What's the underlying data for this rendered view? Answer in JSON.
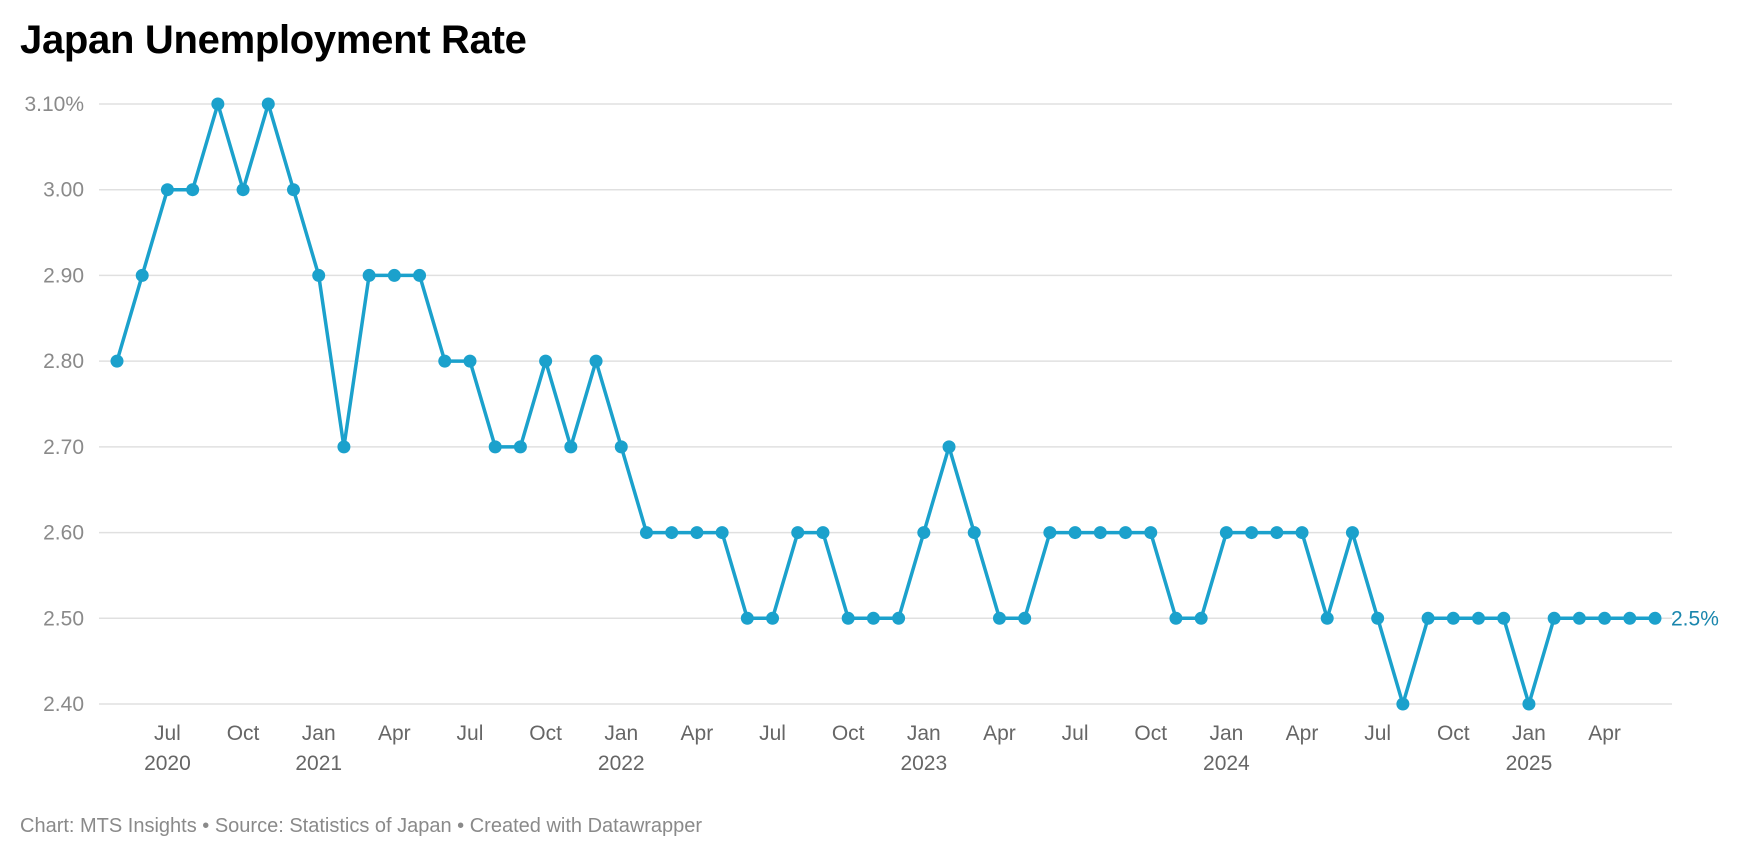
{
  "chart_data": {
    "type": "line",
    "title": "Japan Unemployment Rate",
    "xlabel": "",
    "ylabel": "",
    "ylim": [
      2.4,
      3.1
    ],
    "y_ticks": [
      "2.40",
      "2.50",
      "2.60",
      "2.70",
      "2.80",
      "2.90",
      "3.00",
      "3.10%"
    ],
    "grid": true,
    "x_start": "2020-05",
    "x_end": "2025-06",
    "x_ticks": [
      {
        "label": "Jul",
        "year": "2020",
        "date": "2020-07"
      },
      {
        "label": "Oct",
        "year": "",
        "date": "2020-10"
      },
      {
        "label": "Jan",
        "year": "2021",
        "date": "2021-01"
      },
      {
        "label": "Apr",
        "year": "",
        "date": "2021-04"
      },
      {
        "label": "Jul",
        "year": "",
        "date": "2021-07"
      },
      {
        "label": "Oct",
        "year": "",
        "date": "2021-10"
      },
      {
        "label": "Jan",
        "year": "2022",
        "date": "2022-01"
      },
      {
        "label": "Apr",
        "year": "",
        "date": "2022-04"
      },
      {
        "label": "Jul",
        "year": "",
        "date": "2022-07"
      },
      {
        "label": "Oct",
        "year": "",
        "date": "2022-10"
      },
      {
        "label": "Jan",
        "year": "2023",
        "date": "2023-01"
      },
      {
        "label": "Apr",
        "year": "",
        "date": "2023-04"
      },
      {
        "label": "Jul",
        "year": "",
        "date": "2023-07"
      },
      {
        "label": "Oct",
        "year": "",
        "date": "2023-10"
      },
      {
        "label": "Jan",
        "year": "2024",
        "date": "2024-01"
      },
      {
        "label": "Apr",
        "year": "",
        "date": "2024-04"
      },
      {
        "label": "Jul",
        "year": "",
        "date": "2024-07"
      },
      {
        "label": "Oct",
        "year": "",
        "date": "2024-10"
      },
      {
        "label": "Jan",
        "year": "2025",
        "date": "2025-01"
      },
      {
        "label": "Apr",
        "year": "",
        "date": "2025-04"
      }
    ],
    "series": [
      {
        "color": "#1ba1cc",
        "end_label": "2.5%",
        "values": [
          2.8,
          2.9,
          3.0,
          3.0,
          3.1,
          3.0,
          3.1,
          3.0,
          2.9,
          2.7,
          2.9,
          2.9,
          2.9,
          2.8,
          2.8,
          2.7,
          2.7,
          2.8,
          2.7,
          2.8,
          2.7,
          2.6,
          2.6,
          2.6,
          2.6,
          2.5,
          2.5,
          2.6,
          2.6,
          2.5,
          2.5,
          2.5,
          2.6,
          2.7,
          2.6,
          2.5,
          2.5,
          2.6,
          2.6,
          2.6,
          2.6,
          2.6,
          2.5,
          2.5,
          2.6,
          2.6,
          2.6,
          2.6,
          2.5,
          2.6,
          2.5,
          2.4,
          2.5,
          2.5,
          2.5,
          2.5,
          2.4,
          2.5,
          2.5,
          2.5,
          2.5,
          2.5
        ]
      }
    ]
  },
  "footer": "Chart: MTS Insights • Source: Statistics of Japan • Created with Datawrapper",
  "colors": {
    "line": "#1ba1cc",
    "end_label": "#1a86ad",
    "grid": "#e0e0e0",
    "tick_text": "#8a8a8a",
    "x_text": "#666666"
  }
}
